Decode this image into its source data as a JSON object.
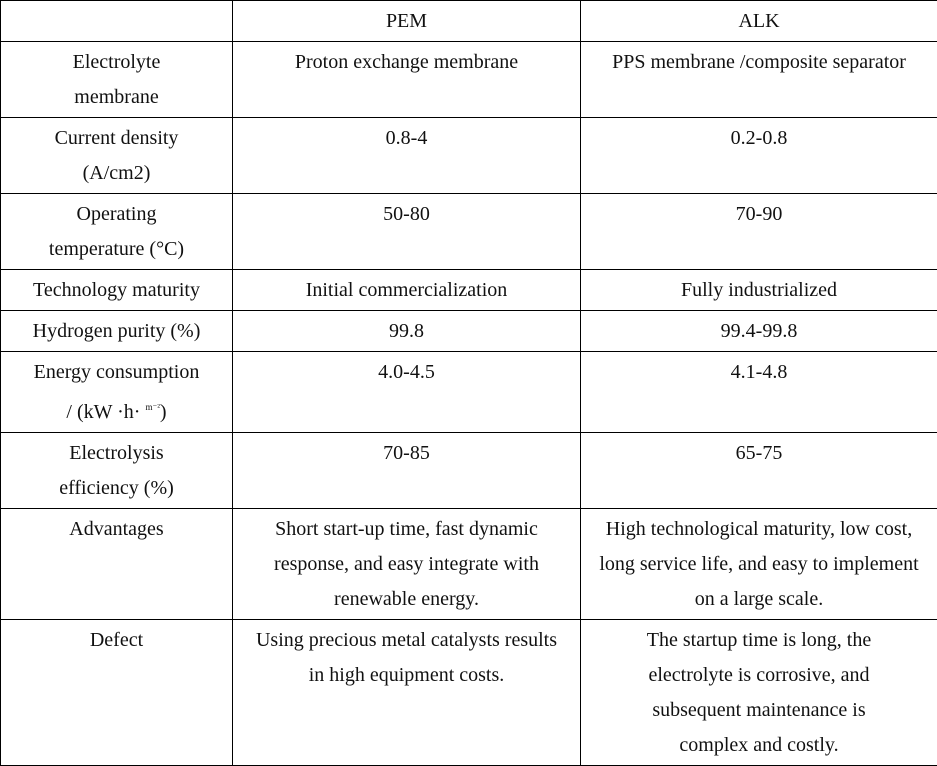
{
  "header": [
    "",
    "PEM",
    "ALK"
  ],
  "rows": [
    {
      "label": "Electrolyte membrane",
      "pem": "Proton exchange membrane",
      "alk": "PPS membrane /composite separator"
    },
    {
      "label": "Current density (A/cm2)",
      "pem": "0.8-4",
      "alk": "0.2-0.8"
    },
    {
      "label": "Operating temperature (°C)",
      "pem": "50-80",
      "alk": "70-90"
    },
    {
      "label": "Technology maturity",
      "pem": "Initial commercialization",
      "alk": "Fully industrialized"
    },
    {
      "label": "Hydrogen purity (%)",
      "pem": "99.8",
      "alk": "99.4-99.8"
    },
    {
      "label": "Energy consumption",
      "label_unit": "/ (kW ·h· ",
      "label_sup": "m⁻²",
      "label_end": ")",
      "pem": "4.0-4.5",
      "alk": "4.1-4.8"
    },
    {
      "label": "Electrolysis efficiency (%)",
      "pem": "70-85",
      "alk": "65-75"
    },
    {
      "label": "Advantages",
      "pem": "Short start-up time, fast dynamic response, and easy integrate with renewable energy.",
      "alk": "High technological maturity, low cost, long service life, and easy to implement on a large scale."
    },
    {
      "label": "Defect",
      "pem": "Using precious metal catalysts results in high equipment costs.",
      "alk": "The startup time is long, the electrolyte is corrosive, and subsequent maintenance is complex and costly."
    }
  ]
}
